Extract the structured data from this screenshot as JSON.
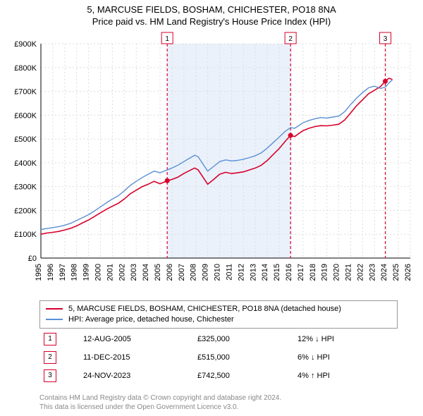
{
  "title_line1": "5, MARCUSE FIELDS, BOSHAM, CHICHESTER, PO18 8NA",
  "title_line2": "Price paid vs. HM Land Registry's House Price Index (HPI)",
  "chart": {
    "type": "line",
    "background_color": "#ffffff",
    "grid_color": "#dddddd",
    "grid_dash": "2,3",
    "axis_color": "#000000",
    "label_color": "#000000",
    "label_fontsize": 11,
    "tick_fontsize": 11,
    "x": {
      "min": 1995,
      "max": 2026,
      "tick_step": 1,
      "ticks": [
        1995,
        1996,
        1997,
        1998,
        1999,
        2000,
        2001,
        2002,
        2003,
        2004,
        2005,
        2006,
        2007,
        2008,
        2009,
        2010,
        2011,
        2012,
        2013,
        2014,
        2015,
        2016,
        2017,
        2018,
        2019,
        2020,
        2021,
        2022,
        2023,
        2024,
        2025,
        2026
      ]
    },
    "y": {
      "min": 0,
      "max": 900000,
      "tick_step": 100000,
      "tick_format_prefix": "£",
      "tick_format_suffix": "K",
      "tick_divide": 1000,
      "ticks": [
        0,
        100000,
        200000,
        300000,
        400000,
        500000,
        600000,
        700000,
        800000,
        900000
      ]
    },
    "highlight_band": {
      "from": 2005.6,
      "to": 2015.95,
      "fill": "#eaf1fb"
    },
    "event_lines": [
      {
        "x": 2005.6,
        "color": "#d7002a",
        "dash": "4,3",
        "badge": "1"
      },
      {
        "x": 2015.95,
        "color": "#d7002a",
        "dash": "4,3",
        "badge": "2"
      },
      {
        "x": 2023.9,
        "color": "#d7002a",
        "dash": "4,3",
        "badge": "3"
      }
    ],
    "series": [
      {
        "name": "price_paid",
        "color": "#d7002a",
        "width": 1.6,
        "points": [
          [
            1995.0,
            100000
          ],
          [
            1995.5,
            105000
          ],
          [
            1996.0,
            108000
          ],
          [
            1996.5,
            112000
          ],
          [
            1997.0,
            118000
          ],
          [
            1997.5,
            125000
          ],
          [
            1998.0,
            135000
          ],
          [
            1998.5,
            148000
          ],
          [
            1999.0,
            160000
          ],
          [
            1999.5,
            175000
          ],
          [
            2000.0,
            190000
          ],
          [
            2000.5,
            205000
          ],
          [
            2001.0,
            218000
          ],
          [
            2001.5,
            230000
          ],
          [
            2002.0,
            248000
          ],
          [
            2002.5,
            270000
          ],
          [
            2003.0,
            285000
          ],
          [
            2003.5,
            300000
          ],
          [
            2004.0,
            310000
          ],
          [
            2004.5,
            322000
          ],
          [
            2005.0,
            312000
          ],
          [
            2005.3,
            318000
          ],
          [
            2005.6,
            325000
          ],
          [
            2006.0,
            330000
          ],
          [
            2006.5,
            340000
          ],
          [
            2007.0,
            355000
          ],
          [
            2007.5,
            368000
          ],
          [
            2007.9,
            378000
          ],
          [
            2008.2,
            370000
          ],
          [
            2008.6,
            340000
          ],
          [
            2009.0,
            310000
          ],
          [
            2009.5,
            330000
          ],
          [
            2010.0,
            352000
          ],
          [
            2010.5,
            360000
          ],
          [
            2011.0,
            355000
          ],
          [
            2011.5,
            358000
          ],
          [
            2012.0,
            362000
          ],
          [
            2012.5,
            370000
          ],
          [
            2013.0,
            378000
          ],
          [
            2013.5,
            390000
          ],
          [
            2014.0,
            410000
          ],
          [
            2014.5,
            435000
          ],
          [
            2015.0,
            460000
          ],
          [
            2015.5,
            490000
          ],
          [
            2015.95,
            515000
          ],
          [
            2016.3,
            510000
          ],
          [
            2016.7,
            525000
          ],
          [
            2017.0,
            535000
          ],
          [
            2017.5,
            545000
          ],
          [
            2018.0,
            552000
          ],
          [
            2018.5,
            556000
          ],
          [
            2019.0,
            555000
          ],
          [
            2019.5,
            558000
          ],
          [
            2020.0,
            562000
          ],
          [
            2020.5,
            580000
          ],
          [
            2021.0,
            610000
          ],
          [
            2021.5,
            640000
          ],
          [
            2022.0,
            665000
          ],
          [
            2022.5,
            690000
          ],
          [
            2023.0,
            705000
          ],
          [
            2023.5,
            720000
          ],
          [
            2023.9,
            742500
          ],
          [
            2024.2,
            755000
          ],
          [
            2024.5,
            750000
          ]
        ],
        "markers": [
          {
            "x": 2005.6,
            "y": 325000
          },
          {
            "x": 2015.95,
            "y": 515000
          },
          {
            "x": 2023.9,
            "y": 742500
          }
        ]
      },
      {
        "name": "hpi",
        "color": "#5b8fd6",
        "width": 1.4,
        "points": [
          [
            1995.0,
            120000
          ],
          [
            1995.5,
            124000
          ],
          [
            1996.0,
            128000
          ],
          [
            1996.5,
            132000
          ],
          [
            1997.0,
            138000
          ],
          [
            1997.5,
            146000
          ],
          [
            1998.0,
            158000
          ],
          [
            1998.5,
            170000
          ],
          [
            1999.0,
            182000
          ],
          [
            1999.5,
            198000
          ],
          [
            2000.0,
            215000
          ],
          [
            2000.5,
            232000
          ],
          [
            2001.0,
            248000
          ],
          [
            2001.5,
            262000
          ],
          [
            2002.0,
            282000
          ],
          [
            2002.5,
            305000
          ],
          [
            2003.0,
            322000
          ],
          [
            2003.5,
            338000
          ],
          [
            2004.0,
            352000
          ],
          [
            2004.5,
            365000
          ],
          [
            2005.0,
            358000
          ],
          [
            2005.5,
            368000
          ],
          [
            2006.0,
            378000
          ],
          [
            2006.5,
            390000
          ],
          [
            2007.0,
            405000
          ],
          [
            2007.5,
            420000
          ],
          [
            2007.9,
            432000
          ],
          [
            2008.2,
            425000
          ],
          [
            2008.6,
            395000
          ],
          [
            2009.0,
            365000
          ],
          [
            2009.5,
            385000
          ],
          [
            2010.0,
            405000
          ],
          [
            2010.5,
            412000
          ],
          [
            2011.0,
            408000
          ],
          [
            2011.5,
            410000
          ],
          [
            2012.0,
            415000
          ],
          [
            2012.5,
            422000
          ],
          [
            2013.0,
            430000
          ],
          [
            2013.5,
            442000
          ],
          [
            2014.0,
            462000
          ],
          [
            2014.5,
            485000
          ],
          [
            2015.0,
            508000
          ],
          [
            2015.5,
            532000
          ],
          [
            2015.95,
            548000
          ],
          [
            2016.3,
            545000
          ],
          [
            2016.7,
            558000
          ],
          [
            2017.0,
            568000
          ],
          [
            2017.5,
            578000
          ],
          [
            2018.0,
            585000
          ],
          [
            2018.5,
            590000
          ],
          [
            2019.0,
            588000
          ],
          [
            2019.5,
            592000
          ],
          [
            2020.0,
            596000
          ],
          [
            2020.5,
            615000
          ],
          [
            2021.0,
            645000
          ],
          [
            2021.5,
            672000
          ],
          [
            2022.0,
            695000
          ],
          [
            2022.5,
            715000
          ],
          [
            2023.0,
            722000
          ],
          [
            2023.5,
            712000
          ],
          [
            2023.9,
            718000
          ],
          [
            2024.2,
            735000
          ],
          [
            2024.5,
            748000
          ]
        ]
      }
    ]
  },
  "legend": {
    "items": [
      {
        "label": "5, MARCUSE FIELDS, BOSHAM, CHICHESTER, PO18 8NA (detached house)",
        "color": "#d7002a"
      },
      {
        "label": "HPI: Average price, detached house, Chichester",
        "color": "#5b8fd6"
      }
    ]
  },
  "events": {
    "border_color": "#d7002a",
    "rows": [
      {
        "n": "1",
        "date": "12-AUG-2005",
        "price": "£325,000",
        "delta": "12% ↓ HPI"
      },
      {
        "n": "2",
        "date": "11-DEC-2015",
        "price": "£515,000",
        "delta": "6% ↓ HPI"
      },
      {
        "n": "3",
        "date": "24-NOV-2023",
        "price": "£742,500",
        "delta": "4% ↑ HPI"
      }
    ]
  },
  "footer_line1": "Contains HM Land Registry data © Crown copyright and database right 2024.",
  "footer_line2": "This data is licensed under the Open Government Licence v3.0."
}
